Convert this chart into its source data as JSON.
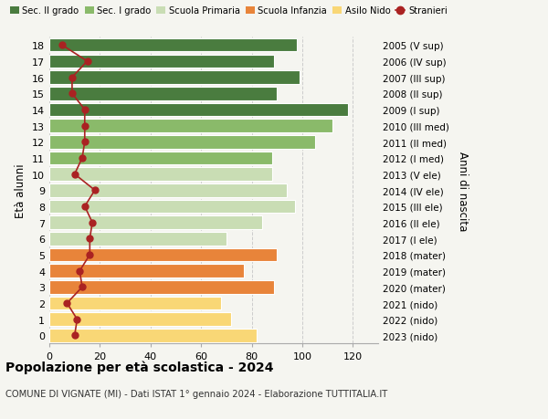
{
  "ages": [
    0,
    1,
    2,
    3,
    4,
    5,
    6,
    7,
    8,
    9,
    10,
    11,
    12,
    13,
    14,
    15,
    16,
    17,
    18
  ],
  "anni_nascita": [
    "2023 (nido)",
    "2022 (nido)",
    "2021 (nido)",
    "2020 (mater)",
    "2019 (mater)",
    "2018 (mater)",
    "2017 (I ele)",
    "2016 (II ele)",
    "2015 (III ele)",
    "2014 (IV ele)",
    "2013 (V ele)",
    "2012 (I med)",
    "2011 (II med)",
    "2010 (III med)",
    "2009 (I sup)",
    "2008 (II sup)",
    "2007 (III sup)",
    "2006 (IV sup)",
    "2005 (V sup)"
  ],
  "bar_values": [
    82,
    72,
    68,
    89,
    77,
    90,
    70,
    84,
    97,
    94,
    88,
    88,
    105,
    112,
    118,
    90,
    99,
    89,
    98
  ],
  "stranieri": [
    10,
    11,
    7,
    13,
    12,
    16,
    16,
    17,
    14,
    18,
    10,
    13,
    14,
    14,
    14,
    9,
    9,
    15,
    5
  ],
  "bar_colors_by_age": {
    "0": "#f9d776",
    "1": "#f9d776",
    "2": "#f9d776",
    "3": "#e8843a",
    "4": "#e8843a",
    "5": "#e8843a",
    "6": "#c9ddb4",
    "7": "#c9ddb4",
    "8": "#c9ddb4",
    "9": "#c9ddb4",
    "10": "#c9ddb4",
    "11": "#8aba6a",
    "12": "#8aba6a",
    "13": "#8aba6a",
    "14": "#4a7c3f",
    "15": "#4a7c3f",
    "16": "#4a7c3f",
    "17": "#4a7c3f",
    "18": "#4a7c3f"
  },
  "legend_labels": [
    "Sec. II grado",
    "Sec. I grado",
    "Scuola Primaria",
    "Scuola Infanzia",
    "Asilo Nido",
    "Stranieri"
  ],
  "legend_colors": [
    "#4a7c3f",
    "#8aba6a",
    "#c9ddb4",
    "#e8843a",
    "#f9d776",
    "#aa2222"
  ],
  "ylabel_left": "Età alunni",
  "ylabel_right": "Anni di nascita",
  "xlim": [
    0,
    130
  ],
  "xticks": [
    0,
    20,
    40,
    60,
    80,
    100,
    120
  ],
  "title": "Popolazione per età scolastica - 2024",
  "subtitle": "COMUNE DI VIGNATE (MI) - Dati ISTAT 1° gennaio 2024 - Elaborazione TUTTITALIA.IT",
  "stranieri_color": "#aa2222",
  "bg_color": "#f5f5f0"
}
